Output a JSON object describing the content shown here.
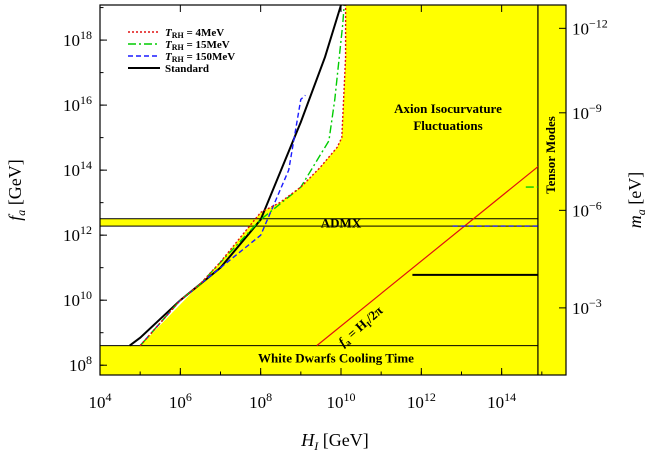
{
  "chart_data": {
    "type": "line",
    "x_axis": {
      "label_main": "H",
      "label_sub": "I",
      "label_unit": " [GeV]",
      "scale": "log",
      "range": [
        10000,
        4000000000000000.0
      ],
      "ticks": [
        {
          "value": 10000,
          "base": "10",
          "exp": "4"
        },
        {
          "value": 1000000,
          "base": "10",
          "exp": "6"
        },
        {
          "value": 100000000,
          "base": "10",
          "exp": "8"
        },
        {
          "value": 10000000000,
          "base": "10",
          "exp": "10"
        },
        {
          "value": 1000000000000,
          "base": "10",
          "exp": "12"
        },
        {
          "value": 100000000000000,
          "base": "10",
          "exp": "14"
        }
      ]
    },
    "y_axis": {
      "label_main": "f",
      "label_sub": "a",
      "label_unit": " [GeV]",
      "scale": "log",
      "range": [
        50000000.0,
        1.2e+19
      ],
      "ticks": [
        {
          "value": 100000000,
          "base": "10",
          "exp": "8"
        },
        {
          "value": 10000000000,
          "base": "10",
          "exp": "10"
        },
        {
          "value": 1000000000000,
          "base": "10",
          "exp": "12"
        },
        {
          "value": 100000000000000,
          "base": "10",
          "exp": "14"
        },
        {
          "value": 10000000000000000,
          "base": "10",
          "exp": "16"
        },
        {
          "value": 1000000000000000000,
          "base": "10",
          "exp": "18"
        }
      ]
    },
    "y2_axis": {
      "label_main": "m",
      "label_sub": "a",
      "label_unit": " [eV]",
      "ticks": [
        {
          "f_a": 2.3e+18,
          "base": "10",
          "exp": "−12"
        },
        {
          "f_a": 5800000000000000.0,
          "base": "10",
          "exp": "−9"
        },
        {
          "f_a": 5800000000000.0,
          "base": "10",
          "exp": "−6"
        },
        {
          "f_a": 5800000000.0,
          "base": "10",
          "exp": "−3"
        }
      ]
    },
    "regions": {
      "isocurvature_label_1": "Axion Isocurvature",
      "isocurvature_label_2": "Fluctuations",
      "admx_label": "ADMX",
      "white_dwarfs_label": "White Dwarfs Cooling Time",
      "tensor_label": "Tensor Modes",
      "diagonal_label_lhs": "f",
      "diagonal_label_sub": "a",
      "diagonal_label_rhs": " = H",
      "diagonal_label_sub2": "I",
      "diagonal_label_tail": "/2π",
      "admx_band": [
        1900000000000.0,
        3200000000000.0
      ],
      "white_dwarfs_max": 400000000.0,
      "tensor_min_H": 800000000000000.0,
      "isocurvature_boundary": [
        [
          13000000000.0,
          1.2e+19
        ],
        [
          13000000000.0,
          3e+17
        ],
        [
          10500000000.0,
          1000000000000000.0
        ],
        [
          8000000000.0,
          500000000000000.0
        ],
        [
          3000000000.0,
          120000000000000.0
        ],
        [
          1000000000.0,
          30000000000000.0
        ],
        [
          300000000.0,
          10000000000000.0
        ],
        [
          100000000.0,
          5000000000000.0
        ],
        [
          10000000.0,
          150000000000.0
        ],
        [
          3000000.0,
          30000000000.0
        ],
        [
          100000.0,
          400000000.0
        ]
      ],
      "diagonal_line": [
        [
          2500000000.0,
          400000000.0
        ],
        [
          6000000000000000.0,
          960000000000000.0
        ]
      ]
    },
    "series": [
      {
        "name": "Standard",
        "style": "solid",
        "color": "#000000",
        "points": [
          [
            55000.0,
            400000000.0
          ],
          [
            100000.0,
            700000000.0
          ],
          [
            1000000.0,
            10000000000.0
          ],
          [
            3000000.0,
            30000000000.0
          ],
          [
            10000000.0,
            100000000000.0
          ],
          [
            100000000.0,
            3000000000000.0
          ],
          [
            1000000000.0,
            3000000000000000.0
          ],
          [
            4000000000.0,
            3e+17
          ],
          [
            10000000000.0,
            1.2e+19
          ]
        ]
      },
      {
        "name": "T_RH = 150MeV",
        "style": "dashed",
        "color": "#1a1aff",
        "points": [
          [
            100000.0,
            400000000.0
          ],
          [
            1000000.0,
            10000000000.0
          ],
          [
            3000000.0,
            30000000000.0
          ],
          [
            100000000.0,
            1000000000000.0
          ],
          [
            500000000.0,
            100000000000000.0
          ],
          [
            1000000000.0,
            1.5e+16
          ],
          [
            1300000000.0,
            2e+16
          ]
        ],
        "plateau": [
          [
            6000000000000.0,
            1900000000000.0
          ],
          [
            800000000000000.0,
            1900000000000.0
          ]
        ]
      },
      {
        "name": "T_RH = 15MeV",
        "style": "dashdot",
        "color": "#00cc00",
        "points": [
          [
            100000.0,
            400000000.0
          ],
          [
            1000000.0,
            10000000000.0
          ],
          [
            3000000.0,
            30000000000.0
          ],
          [
            100000000.0,
            3000000000000.0
          ],
          [
            1000000000.0,
            30000000000000.0
          ],
          [
            5000000000.0,
            800000000000000.0
          ],
          [
            7000000000.0,
            1.5e+16
          ],
          [
            11000000000.0,
            3e+18
          ],
          [
            12000000000.0,
            1.2e+19
          ]
        ],
        "plateau": [
          [
            400000000000000.0,
            30000000000000.0
          ],
          [
            800000000000000.0,
            30000000000000.0
          ]
        ]
      },
      {
        "name": "T_RH = 4MeV",
        "style": "dotted",
        "color": "#e01010",
        "points": [
          [
            100000.0,
            400000000.0
          ],
          [
            1000000.0,
            10000000000.0
          ],
          [
            3000000.0,
            30000000000.0
          ],
          [
            10000000.0,
            150000000000.0
          ],
          [
            100000000.0,
            5000000000000.0
          ],
          [
            300000000.0,
            10000000000000.0
          ],
          [
            1000000000.0,
            30000000000000.0
          ],
          [
            3000000000.0,
            120000000000000.0
          ],
          [
            8000000000.0,
            500000000000000.0
          ],
          [
            10500000000.0,
            1000000000000000.0
          ],
          [
            13000000000.0,
            3e+17
          ],
          [
            13000000000.0,
            1.2e+19
          ]
        ]
      }
    ],
    "extra_lines": [
      {
        "name": "standard_plateau",
        "color": "#000000",
        "points": [
          [
            600000000000.0,
            60000000000.0
          ],
          [
            800000000000000.0,
            60000000000.0
          ]
        ]
      }
    ],
    "legend": {
      "position": "top-left",
      "entries": [
        {
          "prefix": "T",
          "sub": "RH",
          "text": " = 4MeV",
          "style": "dotted",
          "color": "#e01010"
        },
        {
          "prefix": "T",
          "sub": "RH",
          "text": " = 15MeV",
          "style": "dashdot",
          "color": "#00cc00"
        },
        {
          "prefix": "T",
          "sub": "RH",
          "text": " = 150MeV",
          "style": "dashed",
          "color": "#1a1aff"
        },
        {
          "prefix": "",
          "sub": "",
          "text": "Standard",
          "style": "solid",
          "color": "#000000"
        }
      ]
    },
    "colors": {
      "fill": "#ffff00",
      "axis": "#000000"
    },
    "grid": false
  }
}
